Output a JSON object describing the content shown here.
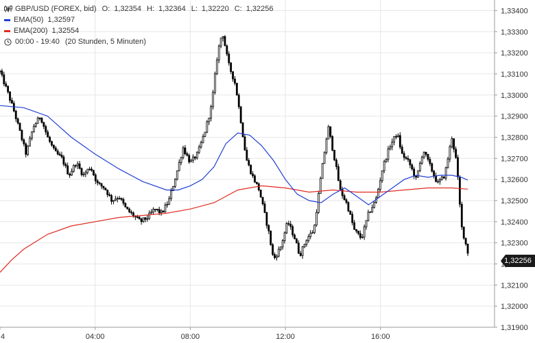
{
  "colors": {
    "candle": "#000000",
    "ema50": "#1f3fd6",
    "ema200": "#e02a20",
    "grid": "#e6e6e6",
    "axis_text": "#333333",
    "badge_bg": "#1a1a1a"
  },
  "icons": {
    "instrument": "candlestick-icon",
    "time": "clock-icon"
  },
  "legend": {
    "instrument": "GBP/USD (FOREX, bid)",
    "ohlc": {
      "open_label": "O:",
      "open": "1,32354",
      "high_label": "H:",
      "high": "1,32364",
      "low_label": "L:",
      "low": "1,32220",
      "close_label": "C:",
      "close": "1,32256"
    },
    "ema50": {
      "label": "EMA(50)",
      "value": "1,32597"
    },
    "ema200": {
      "label": "EMA(200)",
      "value": "1,32554"
    },
    "time_range": "00:00 - 19:40",
    "time_note": "(20 Stunden, 5 Minuten)"
  },
  "last_price_badge": "1,32256",
  "chart_data": {
    "type": "candlestick",
    "x_tick_labels": [
      "4",
      "04:00",
      "08:00",
      "12:00",
      "16:00"
    ],
    "x_ticks_hours": [
      0,
      4,
      8,
      12,
      16
    ],
    "x_range_hours": [
      0,
      19.67
    ],
    "y_tick_labels": [
      "1,31900",
      "1,32000",
      "1,32100",
      "1,32200",
      "1,32300",
      "1,32400",
      "1,32500",
      "1,32600",
      "1,32700",
      "1,32800",
      "1,32900",
      "1,33000",
      "1,33100",
      "1,33200",
      "1,33300",
      "1,33400"
    ],
    "y_ticks": [
      1.319,
      1.32,
      1.321,
      1.322,
      1.323,
      1.324,
      1.325,
      1.326,
      1.327,
      1.328,
      1.329,
      1.33,
      1.331,
      1.332,
      1.333,
      1.334
    ],
    "ylim": [
      1.319,
      1.3345
    ],
    "grid": true,
    "close_path": [
      [
        0,
        1.3311
      ],
      [
        0.3,
        1.3302
      ],
      [
        0.6,
        1.3292
      ],
      [
        0.9,
        1.328
      ],
      [
        1.1,
        1.3272
      ],
      [
        1.4,
        1.3285
      ],
      [
        1.7,
        1.329
      ],
      [
        2.0,
        1.328
      ],
      [
        2.3,
        1.3273
      ],
      [
        2.6,
        1.327
      ],
      [
        2.9,
        1.3262
      ],
      [
        3.2,
        1.3268
      ],
      [
        3.5,
        1.3262
      ],
      [
        3.8,
        1.3266
      ],
      [
        4.1,
        1.3258
      ],
      [
        4.4,
        1.3256
      ],
      [
        4.7,
        1.325
      ],
      [
        5.0,
        1.3252
      ],
      [
        5.3,
        1.3246
      ],
      [
        5.6,
        1.3243
      ],
      [
        5.9,
        1.324
      ],
      [
        6.2,
        1.3242
      ],
      [
        6.5,
        1.3246
      ],
      [
        6.8,
        1.3244
      ],
      [
        7.1,
        1.325
      ],
      [
        7.4,
        1.3262
      ],
      [
        7.7,
        1.3275
      ],
      [
        8.0,
        1.3268
      ],
      [
        8.3,
        1.3272
      ],
      [
        8.6,
        1.3282
      ],
      [
        8.9,
        1.3295
      ],
      [
        9.15,
        1.332
      ],
      [
        9.35,
        1.333
      ],
      [
        9.6,
        1.3315
      ],
      [
        9.9,
        1.3305
      ],
      [
        10.1,
        1.329
      ],
      [
        10.35,
        1.327
      ],
      [
        10.6,
        1.3262
      ],
      [
        10.9,
        1.3255
      ],
      [
        11.1,
        1.3245
      ],
      [
        11.3,
        1.3235
      ],
      [
        11.5,
        1.3222
      ],
      [
        11.8,
        1.3228
      ],
      [
        12.1,
        1.324
      ],
      [
        12.4,
        1.3232
      ],
      [
        12.6,
        1.3224
      ],
      [
        12.9,
        1.3232
      ],
      [
        13.2,
        1.3236
      ],
      [
        13.5,
        1.3262
      ],
      [
        13.8,
        1.3285
      ],
      [
        14.1,
        1.3268
      ],
      [
        14.3,
        1.3255
      ],
      [
        14.6,
        1.3248
      ],
      [
        14.9,
        1.3236
      ],
      [
        15.2,
        1.3232
      ],
      [
        15.5,
        1.3244
      ],
      [
        15.8,
        1.325
      ],
      [
        16.1,
        1.3266
      ],
      [
        16.4,
        1.3276
      ],
      [
        16.7,
        1.3282
      ],
      [
        16.9,
        1.3272
      ],
      [
        17.2,
        1.3268
      ],
      [
        17.5,
        1.326
      ],
      [
        17.8,
        1.3274
      ],
      [
        18.1,
        1.3266
      ],
      [
        18.4,
        1.3258
      ],
      [
        18.7,
        1.3262
      ],
      [
        19.0,
        1.328
      ],
      [
        19.2,
        1.3268
      ],
      [
        19.4,
        1.3238
      ],
      [
        19.67,
        1.32256
      ]
    ],
    "ema50": [
      [
        0,
        1.3295
      ],
      [
        1.0,
        1.3294
      ],
      [
        2.0,
        1.329
      ],
      [
        3.0,
        1.328
      ],
      [
        4.0,
        1.3272
      ],
      [
        5.0,
        1.3265
      ],
      [
        6.0,
        1.3259
      ],
      [
        7.0,
        1.3255
      ],
      [
        7.5,
        1.3255
      ],
      [
        8.0,
        1.3257
      ],
      [
        8.5,
        1.326
      ],
      [
        9.0,
        1.3266
      ],
      [
        9.5,
        1.3277
      ],
      [
        10.0,
        1.3282
      ],
      [
        10.5,
        1.3281
      ],
      [
        11.0,
        1.3276
      ],
      [
        11.5,
        1.3269
      ],
      [
        12.0,
        1.326
      ],
      [
        12.5,
        1.3253
      ],
      [
        13.0,
        1.325
      ],
      [
        13.5,
        1.3249
      ],
      [
        14.0,
        1.3253
      ],
      [
        14.5,
        1.3256
      ],
      [
        15.0,
        1.3252
      ],
      [
        15.5,
        1.3248
      ],
      [
        16.0,
        1.3252
      ],
      [
        16.5,
        1.3256
      ],
      [
        17.0,
        1.326
      ],
      [
        17.5,
        1.3262
      ],
      [
        18.0,
        1.3261
      ],
      [
        18.5,
        1.3262
      ],
      [
        19.0,
        1.3262
      ],
      [
        19.4,
        1.3261
      ],
      [
        19.67,
        1.32597
      ]
    ],
    "ema200": [
      [
        0,
        1.3216
      ],
      [
        0.5,
        1.3222
      ],
      [
        1.0,
        1.3227
      ],
      [
        2.0,
        1.3234
      ],
      [
        3.0,
        1.3238
      ],
      [
        4.0,
        1.324
      ],
      [
        5.0,
        1.3242
      ],
      [
        6.0,
        1.3243
      ],
      [
        7.0,
        1.3244
      ],
      [
        8.0,
        1.3246
      ],
      [
        9.0,
        1.3249
      ],
      [
        10.0,
        1.3255
      ],
      [
        11.0,
        1.3257
      ],
      [
        12.0,
        1.3256
      ],
      [
        13.0,
        1.3254
      ],
      [
        14.0,
        1.3255
      ],
      [
        15.0,
        1.3254
      ],
      [
        16.0,
        1.3254
      ],
      [
        17.0,
        1.3255
      ],
      [
        18.0,
        1.3256
      ],
      [
        19.0,
        1.3256
      ],
      [
        19.67,
        1.32554
      ]
    ]
  }
}
